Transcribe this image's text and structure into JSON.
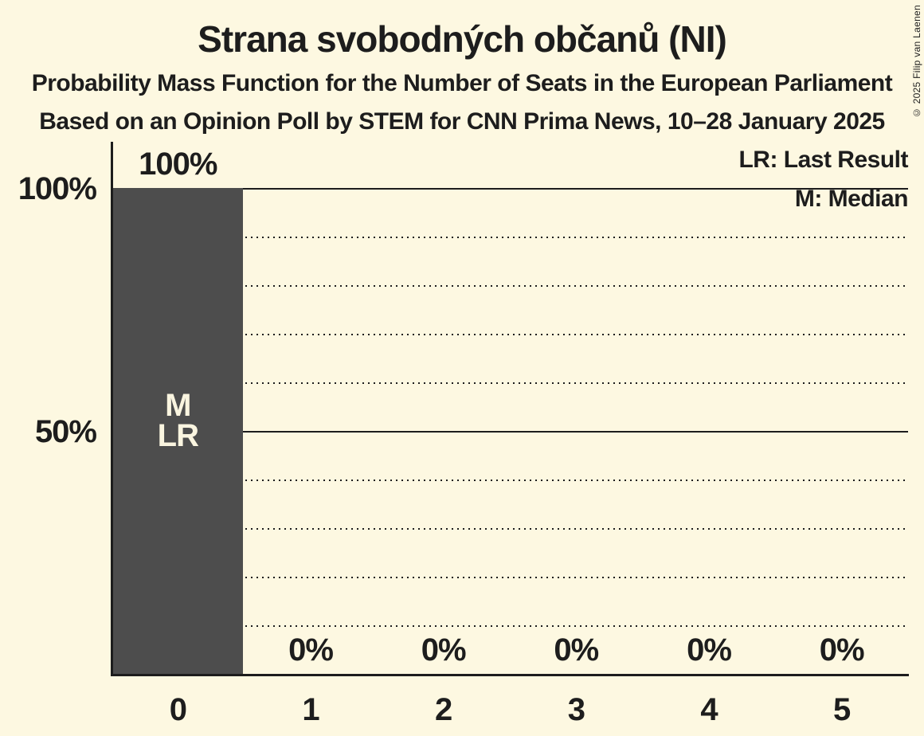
{
  "chart_data": {
    "type": "bar",
    "title": "Strana svobodných občanů (NI)",
    "subtitle": "Probability Mass Function for the Number of Seats in the European Parliament",
    "source": "Based on an Opinion Poll by STEM for CNN Prima News, 10–28 January 2025",
    "categories": [
      "0",
      "1",
      "2",
      "3",
      "4",
      "5"
    ],
    "values": [
      100,
      0,
      0,
      0,
      0,
      0
    ],
    "value_labels": [
      "100%",
      "0%",
      "0%",
      "0%",
      "0%",
      "0%"
    ],
    "ylim": [
      0,
      100
    ],
    "ytick_percents": [
      100,
      50
    ],
    "ytick_labels": [
      "100%",
      "50%"
    ],
    "gridline_solid_percents": [
      100,
      50
    ],
    "gridline_dotted_percents": [
      90,
      80,
      70,
      60,
      40,
      30,
      20,
      10
    ],
    "legend": [
      "LR: Last Result",
      "M: Median"
    ],
    "legend_abbreviations": [
      {
        "abbr": "LR",
        "label": "Last Result"
      },
      {
        "abbr": "M",
        "label": "Median"
      }
    ],
    "bar_annotations": [
      {
        "category_index": 0,
        "lines": [
          "M",
          "LR"
        ]
      }
    ],
    "copyright": "© 2025 Filip van Laenen",
    "colors": {
      "background": "#fdf8e1",
      "bar": "#4d4d4d",
      "text": "#1d1d1d",
      "bar_label_text": "#faf5e0"
    }
  }
}
